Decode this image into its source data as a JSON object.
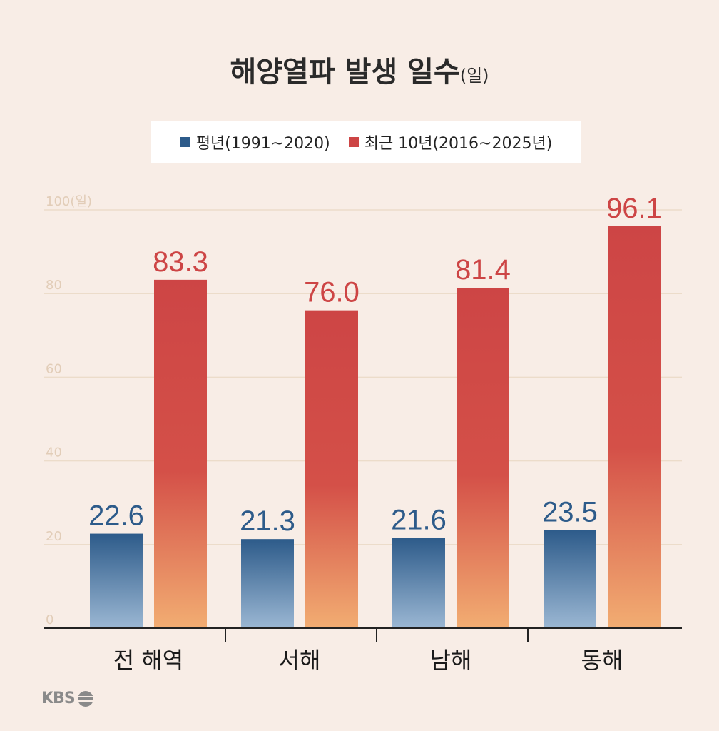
{
  "title": {
    "main": "해양열파 발생 일수",
    "unit": "(일)"
  },
  "legend": [
    {
      "label": "평년(1991~2020)",
      "color": "#2d5b8a"
    },
    {
      "label": "최근 10년(2016~2025년)",
      "color": "#cd4545"
    }
  ],
  "logo": {
    "text": "KBS"
  },
  "chart_data": {
    "type": "bar",
    "categories": [
      "전 해역",
      "서해",
      "남해",
      "동해"
    ],
    "series": [
      {
        "name": "평년(1991~2020)",
        "values": [
          22.6,
          21.3,
          21.6,
          23.5
        ],
        "labels": [
          "22.6",
          "21.3",
          "21.6",
          "23.5"
        ],
        "color": "#2d5b8a"
      },
      {
        "name": "최근 10년(2016~2025년)",
        "values": [
          83.3,
          76.0,
          81.4,
          96.1
        ],
        "labels": [
          "83.3",
          "76.0",
          "81.4",
          "96.1"
        ],
        "color": "#cd4545"
      }
    ],
    "ylim": [
      0,
      100
    ],
    "yticks": [
      0,
      20,
      40,
      60,
      80,
      100
    ],
    "ytick_labels": [
      "0",
      "20",
      "40",
      "60",
      "80",
      "100"
    ],
    "yunit": "(일)",
    "grid": true,
    "legend_position": "top"
  }
}
